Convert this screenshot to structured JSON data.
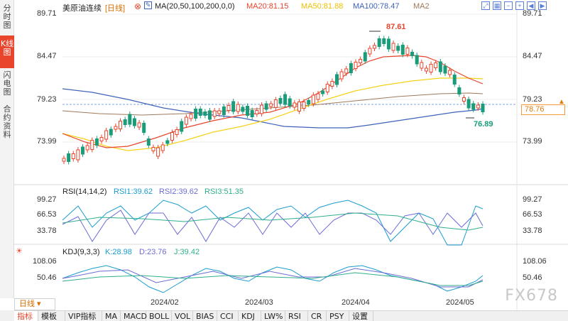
{
  "left_tabs": [
    "分时图",
    "K线图",
    "闪电图",
    "合约资料"
  ],
  "active_left_tab": 1,
  "main": {
    "title": "美原油连续",
    "period_tag": "[日线]",
    "ma_label": "MA(20,50,100,200,0,0)",
    "ma20": "MA20:81.15",
    "ma50": "MA50:81.88",
    "ma100": "MA100:78.47",
    "ma2": "MA2",
    "y_ticks": [
      "89.71",
      "84.47",
      "79.23",
      "73.99"
    ],
    "current_price": "78.76",
    "high_label": "87.61",
    "low_label": "76.89"
  },
  "rsi": {
    "label": "RSI(14,14,2)",
    "rsi1": "RSI1:39.62",
    "rsi2": "RSI2:39.62",
    "rsi3": "RSI3:51.35",
    "y_ticks": [
      "99.27",
      "66.53",
      "33.78"
    ]
  },
  "kdj": {
    "label": "KDJ(9,3,3)",
    "k": "K:28.98",
    "d": "D:23.76",
    "j": "J:39.42",
    "y_ticks": [
      "108.06",
      "50.46"
    ]
  },
  "x_axis": [
    "2024/02",
    "2024/03",
    "2024/04",
    "2024/05"
  ],
  "period_button": "日线",
  "toolbar": [
    "指标",
    "模板",
    "VIP指标",
    "MA",
    "MACD",
    "BOLL",
    "VOL",
    "BIAS",
    "CCI",
    "KDJ",
    "LW%",
    "RSI",
    "CR",
    "PSY",
    "设置"
  ],
  "active_toolbar": 0,
  "watermark": "FX678",
  "colors": {
    "up": "#e8452c",
    "down": "#1a9c7a",
    "ma20": "#e8452c",
    "ma50": "#f5d21a",
    "ma100": "#3f63b8",
    "ma200": "#a0795a"
  },
  "top_icons": [
    "maximize-icon",
    "chart-style-icon",
    "zoom-out-icon",
    "zoom-in-icon",
    "left-arrow-icon",
    "right-arrow-icon"
  ]
}
